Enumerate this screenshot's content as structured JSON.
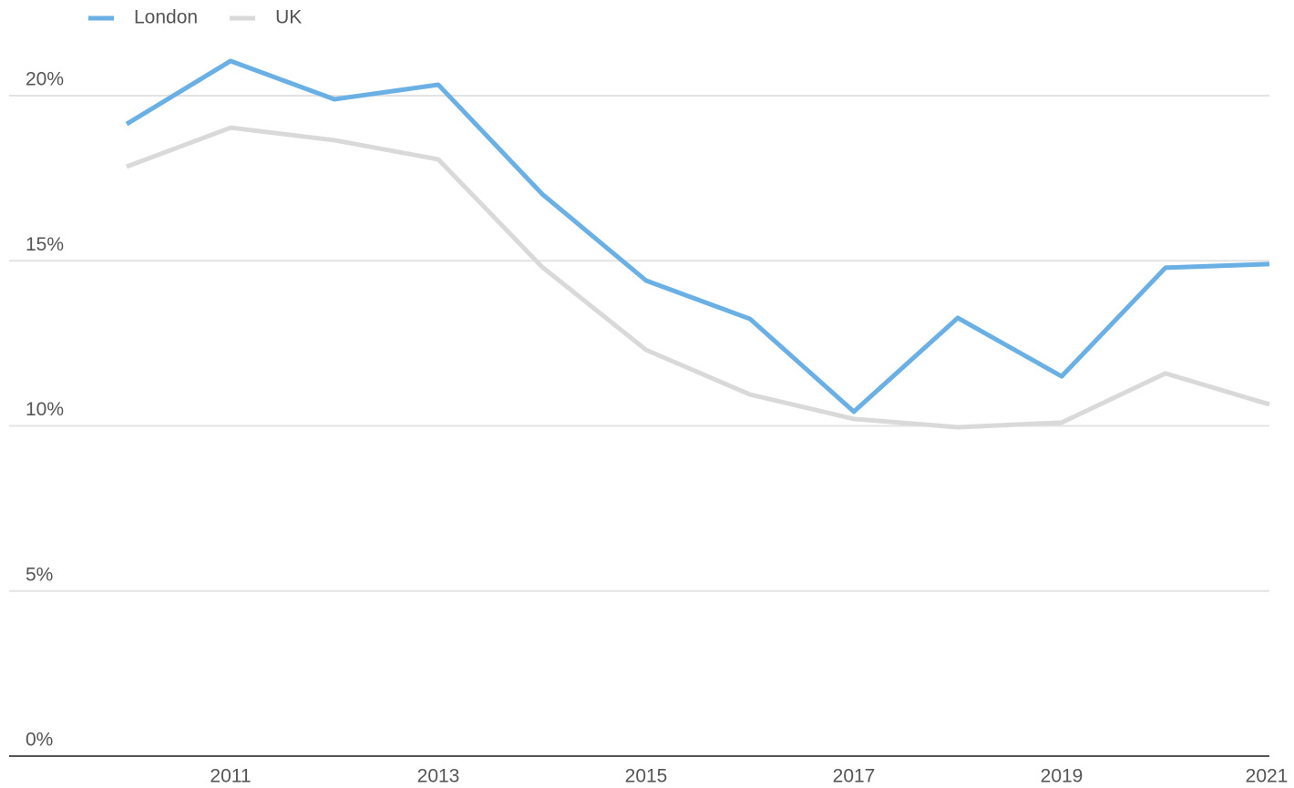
{
  "chart_data": {
    "type": "line",
    "x": [
      2010,
      2011,
      2012,
      2013,
      2014,
      2015,
      2016,
      2017,
      2018,
      2019,
      2020,
      2021
    ],
    "series": [
      {
        "name": "London",
        "color": "#6ab0e4",
        "values": [
          19.14,
          21.05,
          19.89,
          20.33,
          17.02,
          14.4,
          13.24,
          10.43,
          13.27,
          11.5,
          14.79,
          14.9
        ]
      },
      {
        "name": "UK",
        "color": "#d9d9d9",
        "values": [
          17.85,
          19.03,
          18.65,
          18.07,
          14.81,
          12.3,
          10.95,
          10.21,
          9.96,
          10.1,
          11.59,
          10.65
        ]
      }
    ],
    "xlim": [
      2009,
      2021
    ],
    "xticks": [
      2011,
      2013,
      2015,
      2017,
      2019,
      2021
    ],
    "ylim": [
      0,
      20
    ],
    "yticks": [
      {
        "value": 0,
        "label": "0%"
      },
      {
        "value": 5,
        "label": "5%"
      },
      {
        "value": 10,
        "label": "10%"
      },
      {
        "value": 15,
        "label": "15%"
      },
      {
        "value": 20,
        "label": "20%"
      }
    ],
    "grid": true,
    "legend": "top-left"
  }
}
